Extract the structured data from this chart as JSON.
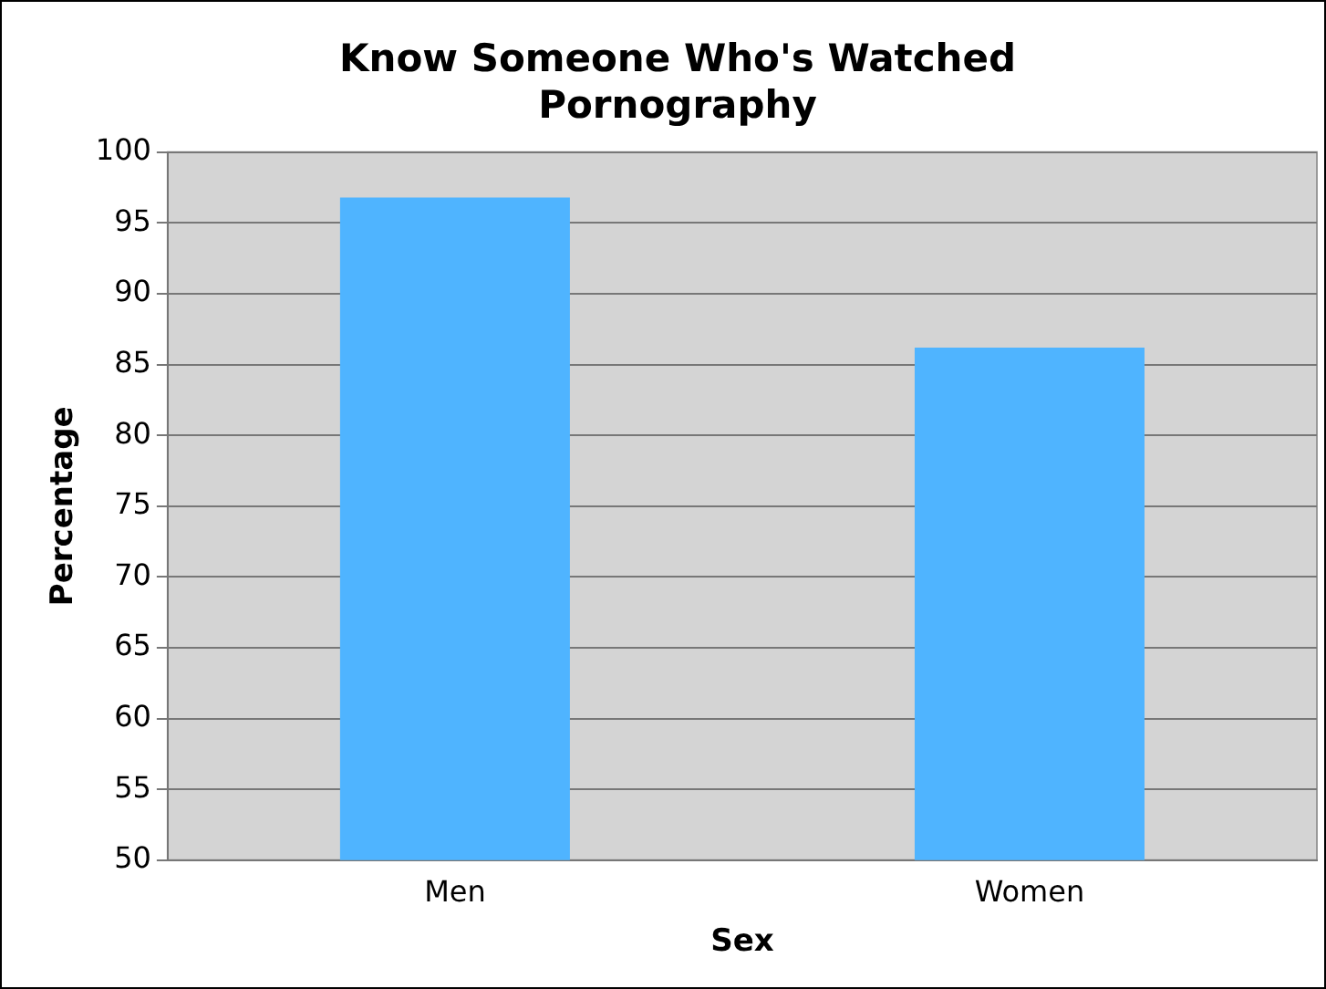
{
  "chart_data": {
    "type": "bar",
    "title": "Know Someone Who's Watched Pornography",
    "xlabel": "Sex",
    "ylabel": "Percentage",
    "categories": [
      "Men",
      "Women"
    ],
    "values": [
      96.8,
      86.2
    ],
    "color": "#4fb4ff",
    "ylim": [
      50,
      100
    ],
    "yticks": [
      50,
      55,
      60,
      65,
      70,
      75,
      80,
      85,
      90,
      95,
      100
    ],
    "grid": "y",
    "legend": false
  }
}
